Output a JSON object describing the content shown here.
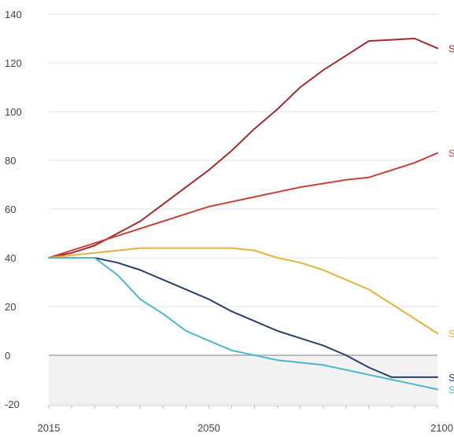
{
  "chart_data": {
    "type": "line",
    "title": "",
    "xlabel": "",
    "ylabel": "",
    "xlim": [
      2015,
      2100
    ],
    "ylim": [
      -20,
      140
    ],
    "x_ticks": [
      2015,
      2050,
      2100
    ],
    "y_ticks": [
      140,
      120,
      100,
      80,
      60,
      40,
      20,
      0,
      -20
    ],
    "grid": "horizontal",
    "negative_region_shaded": true,
    "x": [
      2015,
      2020,
      2025,
      2030,
      2035,
      2040,
      2045,
      2050,
      2055,
      2060,
      2065,
      2070,
      2075,
      2080,
      2085,
      2090,
      2095,
      2100
    ],
    "series": [
      {
        "label": "S",
        "color": "#a32a2a",
        "values": [
          40,
          42,
          45,
          50,
          55,
          62,
          69,
          76,
          84,
          93,
          101,
          110,
          117,
          123,
          129,
          129.5,
          130,
          126
        ]
      },
      {
        "label": "S",
        "color": "#c8403a",
        "values": [
          40,
          43,
          46,
          49,
          52,
          55,
          58,
          61,
          63,
          65,
          67,
          69,
          70.5,
          72,
          73,
          76,
          79,
          83
        ]
      },
      {
        "label": "S",
        "color": "#e6b23a",
        "values": [
          40,
          41,
          42,
          43,
          44,
          44,
          44,
          44,
          44,
          43,
          40,
          38,
          35,
          31,
          27,
          21,
          15,
          9
        ]
      },
      {
        "label": "S",
        "color": "#27406b",
        "values": [
          40,
          40,
          40,
          38,
          35,
          31,
          27,
          23,
          18,
          14,
          10,
          7,
          4,
          0,
          -5,
          -9,
          -9,
          -9
        ]
      },
      {
        "label": "S",
        "color": "#49b7cc",
        "values": [
          40,
          40,
          40,
          33,
          23,
          17,
          10,
          6,
          2,
          0,
          -2,
          -3,
          -4,
          -6,
          -8,
          -10,
          -12,
          -14
        ]
      }
    ]
  }
}
